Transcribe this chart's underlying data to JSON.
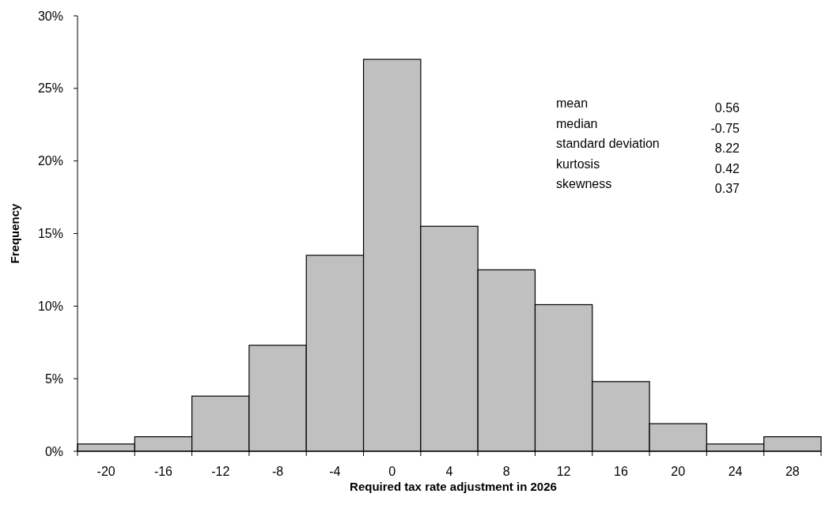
{
  "chart_data": {
    "type": "bar",
    "xlabel": "Required tax rate adjustment in 2026",
    "ylabel": "Frequency",
    "categories": [
      "-20",
      "-16",
      "-12",
      "-8",
      "-4",
      "0",
      "4",
      "8",
      "12",
      "16",
      "20",
      "24",
      "28"
    ],
    "values": [
      0.5,
      1.0,
      3.8,
      7.3,
      13.5,
      27.0,
      15.5,
      12.5,
      10.1,
      4.8,
      1.9,
      0.5,
      1.0
    ],
    "color": "#c0c0c0",
    "ylim": [
      0,
      30
    ],
    "yticks": [
      {
        "value": 0,
        "label": "0%"
      },
      {
        "value": 5,
        "label": "5%"
      },
      {
        "value": 10,
        "label": "10%"
      },
      {
        "value": 15,
        "label": "15%"
      },
      {
        "value": 20,
        "label": "20%"
      },
      {
        "value": 25,
        "label": "25%"
      },
      {
        "value": 30,
        "label": "30%"
      }
    ],
    "grid": false,
    "annotations": [
      "mean",
      "0.56",
      "median",
      "-0.75",
      "standard deviation",
      "8.22",
      "kurtosis",
      "0.42",
      "skewness",
      "0.37"
    ]
  }
}
